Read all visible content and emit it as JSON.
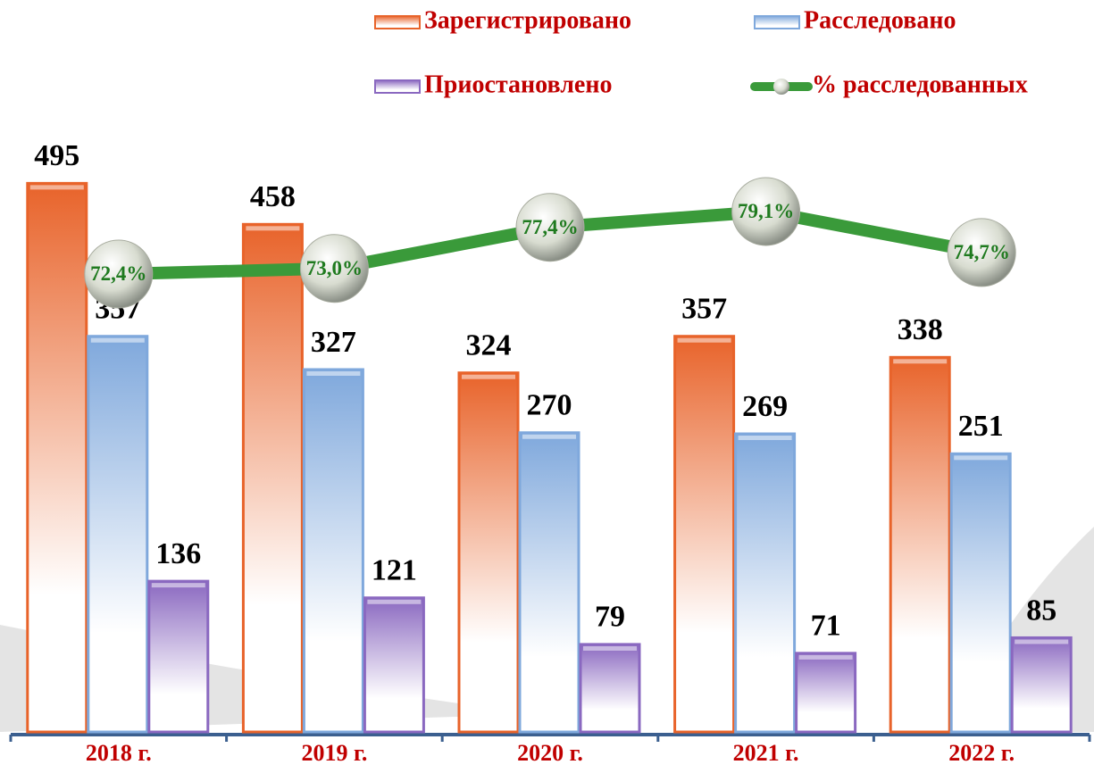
{
  "chart_data": {
    "type": "bar",
    "categories": [
      "2018 г.",
      "2019 г.",
      "2020 г.",
      "2021 г.",
      "2022 г."
    ],
    "series": [
      {
        "name": "Зарегистрировано",
        "color": "#e8632a",
        "values": [
          495,
          458,
          324,
          357,
          338
        ]
      },
      {
        "name": "Расследовано",
        "color": "#7fa8dc",
        "values": [
          357,
          327,
          270,
          269,
          251
        ]
      },
      {
        "name": "Приостановлено",
        "color": "#8a68c0",
        "values": [
          136,
          121,
          79,
          71,
          85
        ]
      },
      {
        "name": "% расследованных",
        "type": "line",
        "axis": "y2",
        "color": "#3a9a3a",
        "values": [
          72.4,
          73.0,
          77.4,
          79.1,
          74.7
        ],
        "value_labels": [
          "72,4%",
          "73,0%",
          "77,4%",
          "79,1%",
          "74,7%"
        ]
      }
    ],
    "ylim": [
      0,
      600
    ],
    "y2lim": [
      23.3,
      94.6
    ]
  }
}
